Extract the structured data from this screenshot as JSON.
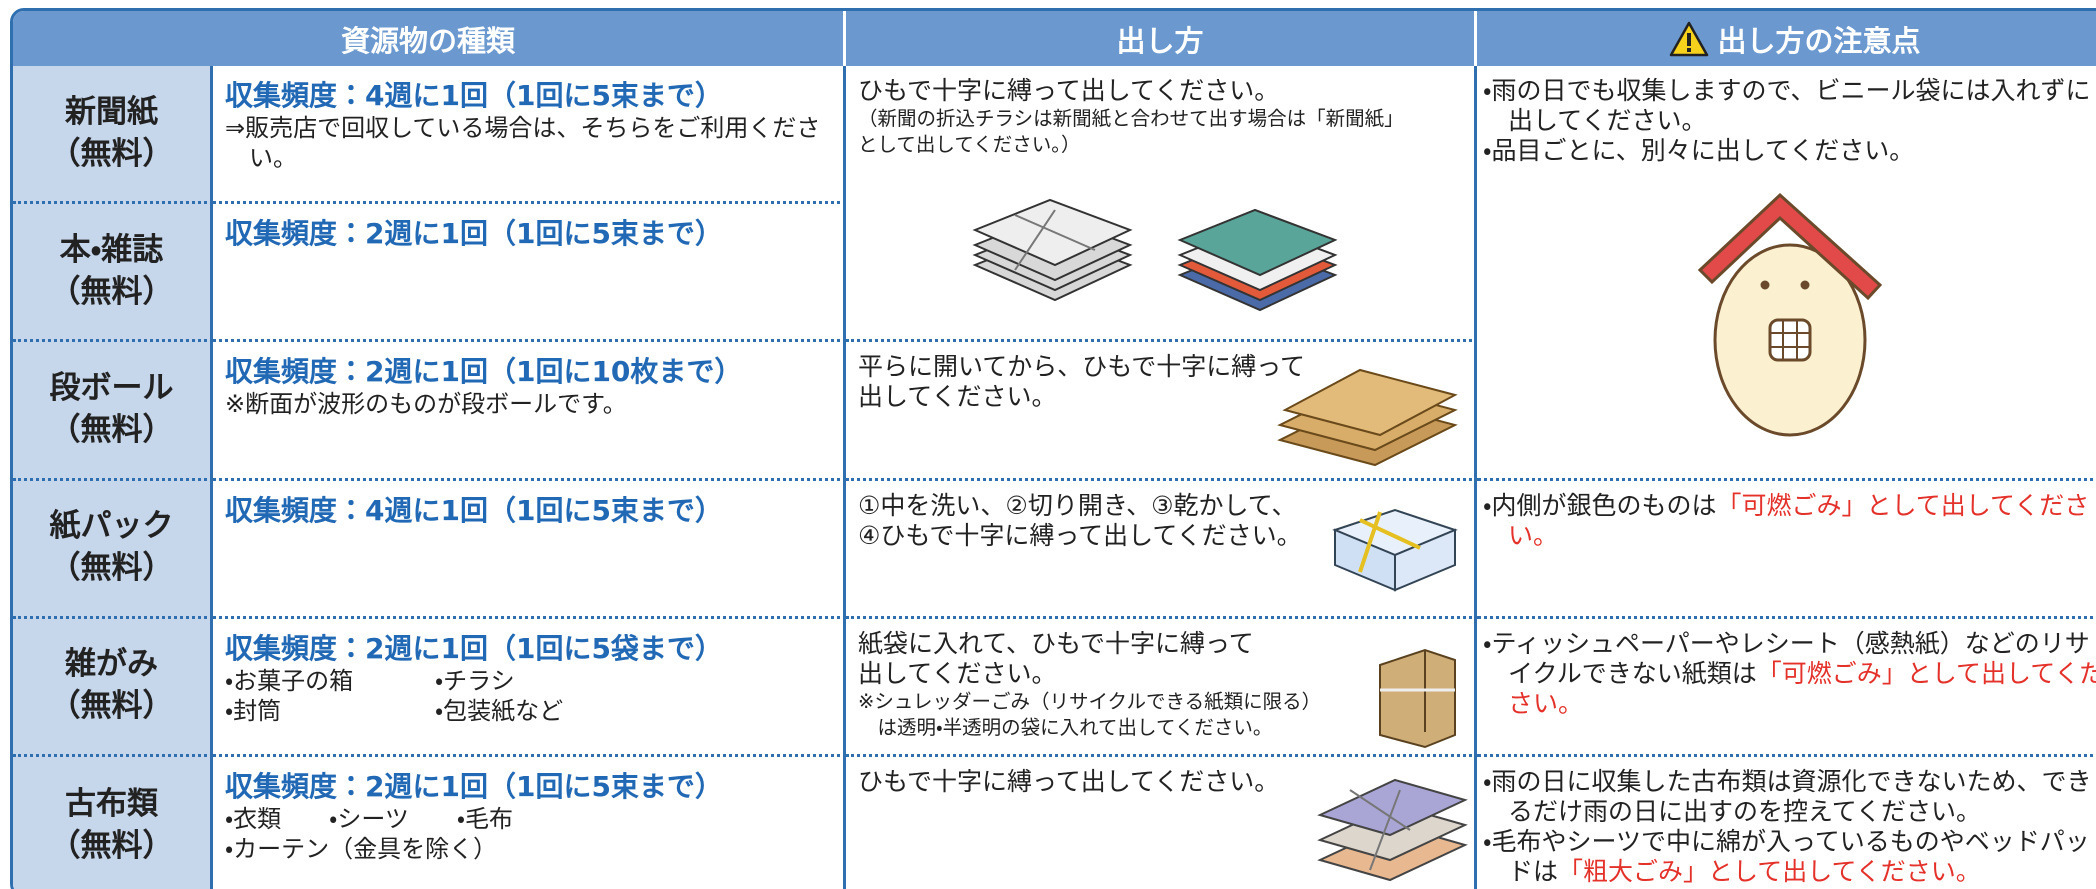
{
  "header": [
    "資源物の種類",
    "出し方",
    "出し方の注意点"
  ],
  "items": [
    {
      "name": "新聞紙",
      "fee": "（無料）",
      "frequency": "収集頻度：4週に1回（1回に5束まで）",
      "details": [
        "⇒販売店で回収している場合は、そちらをご利用ください。"
      ]
    },
    {
      "name": "本・雑誌",
      "fee": "（無料）",
      "frequency": "収集頻度：2週に1回（1回に5束まで）",
      "details": []
    },
    {
      "name": "段ボール",
      "fee": "（無料）",
      "frequency": "収集頻度：2週に1回（1回に10枚まで）",
      "details": [
        "※断面が波形のものが段ボールです。"
      ]
    },
    {
      "name": "紙パック",
      "fee": "（無料）",
      "frequency": "収集頻度：4週に1回（1回に5束まで）",
      "details": []
    },
    {
      "name": "雑がみ",
      "fee": "（無料）",
      "frequency": "収集頻度：2週に1回（1回に5袋まで）",
      "details": [
        "・お菓子の箱",
        "・チラシ",
        "・封筒",
        "・包装紙など"
      ]
    },
    {
      "name": "古布類",
      "fee": "（無料）",
      "frequency": "収集頻度：2週に1回（1回に5束まで）",
      "details": [
        "・衣類",
        "・シーツ",
        "・毛布",
        "・カーテン（金具を除く）"
      ]
    }
  ],
  "methods": [
    {
      "lines": [
        "ひもで十字に縛って出してください。"
      ],
      "small": [
        "（新聞の折込チラシは新聞紙と合わせて出す場合は「新聞紙」",
        "として出してください。）"
      ]
    },
    {
      "lines": [
        "平らに開いてから、ひもで十字に縛って",
        "出してください。"
      ],
      "small": []
    },
    {
      "lines": [
        "①中を洗い、②切り開き、③乾かして、",
        "④ひもで十字に縛って出してください。"
      ],
      "small": []
    },
    {
      "lines": [
        "紙袋に入れて、ひもで十字に縛って",
        "出してください。"
      ],
      "small": [
        "※シュレッダーごみ（リサイクルできる紙類に限る）",
        "　は透明・半透明の袋に入れて出してください。"
      ]
    },
    {
      "lines": [
        "ひもで十字に縛って出してください。"
      ],
      "small": []
    }
  ],
  "notes": [
    [
      {
        "text": "・雨の日でも収集しますので、ビニール袋には入れずに出してください。"
      },
      {
        "text": "・品目ごとに、別々に出してください。"
      }
    ],
    [
      {
        "text": "・内側が銀色のものは",
        "emphasis": "「可燃ごみ」として出してください。"
      }
    ],
    [
      {
        "text": "・ティッシュペーパーやレシート（感熱紙）などのリサイクルできない紙類は",
        "emphasis": "「可燃ごみ」として出してください。"
      }
    ],
    [
      {
        "text": "・雨の日に収集した古布類は資源化できないため、できるだけ雨の日に出すのを控えてください。"
      },
      {
        "text": "・毛布やシーツで中に綿が入っているものやベッドパッドは",
        "emphasis": "「粗大ごみ」として出してください。"
      }
    ]
  ]
}
